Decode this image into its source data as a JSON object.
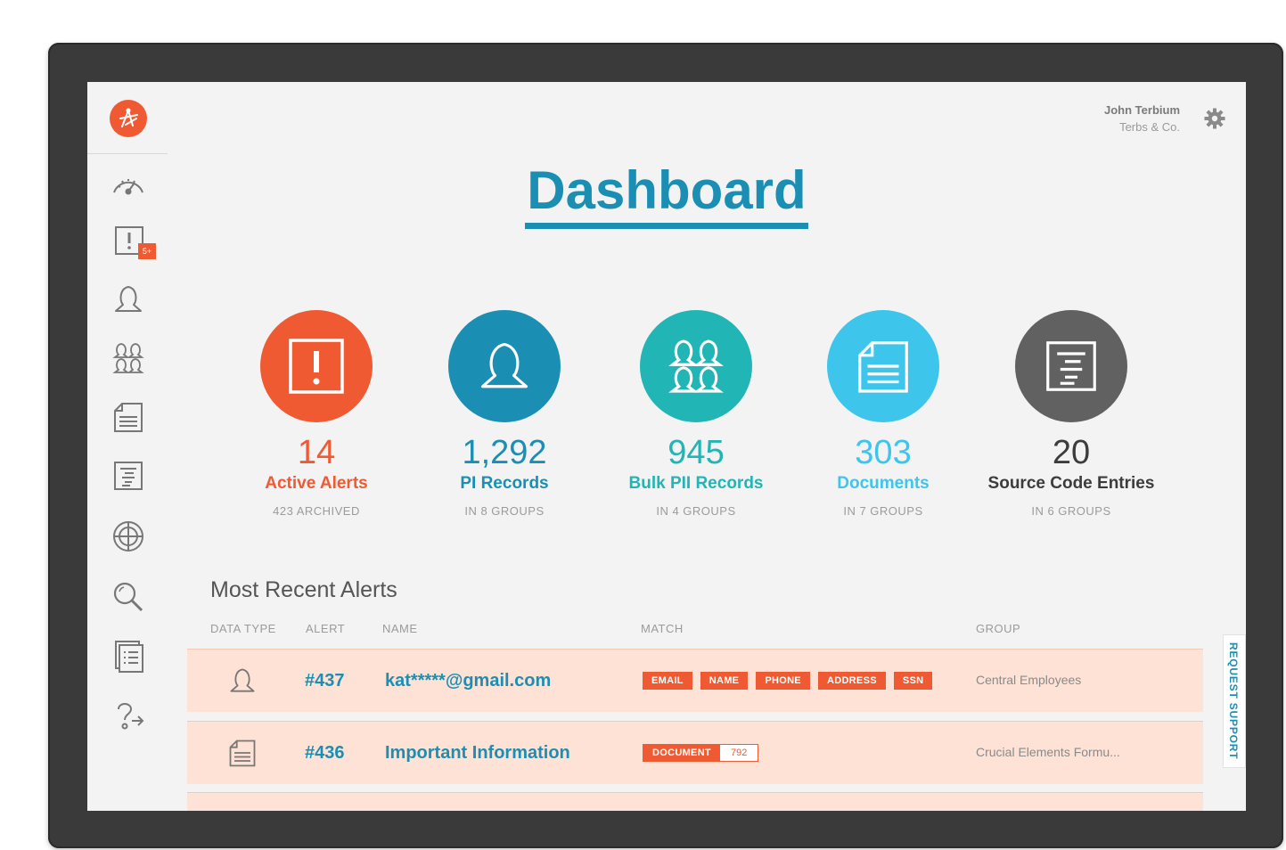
{
  "header": {
    "user_name": "John Terbium",
    "user_company": "Terbs & Co.",
    "title": "Dashboard"
  },
  "sidebar": {
    "alerts_badge": "5+",
    "items": [
      {
        "icon": "speedometer-icon"
      },
      {
        "icon": "alert-icon"
      },
      {
        "icon": "person-icon"
      },
      {
        "icon": "group-icon"
      },
      {
        "icon": "document-icon"
      },
      {
        "icon": "source-code-icon"
      },
      {
        "icon": "globe-icon"
      },
      {
        "icon": "search-icon"
      },
      {
        "icon": "list-icon"
      },
      {
        "icon": "help-icon"
      }
    ]
  },
  "stats": [
    {
      "value": "14",
      "label": "Active Alerts",
      "sub": "423 ARCHIVED",
      "color": "#f05a33",
      "icon": "alert-icon"
    },
    {
      "value": "1,292",
      "label": "PI Records",
      "sub": "IN 8 GROUPS",
      "color": "#1b8fb3",
      "icon": "person-icon"
    },
    {
      "value": "945",
      "label": "Bulk PII Records",
      "sub": "IN 4 GROUPS",
      "color": "#22b5b5",
      "icon": "group-icon"
    },
    {
      "value": "303",
      "label": "Documents",
      "sub": "IN 7 GROUPS",
      "color": "#3dc5ec",
      "icon": "document-icon"
    },
    {
      "value": "20",
      "label": "Source Code Entries",
      "sub": "IN 6 GROUPS",
      "color": "#616161",
      "icon": "source-code-icon"
    }
  ],
  "alerts": {
    "title": "Most Recent Alerts",
    "columns": {
      "data_type": "DATA TYPE",
      "alert": "ALERT",
      "name": "NAME",
      "match": "MATCH",
      "group": "GROUP"
    },
    "rows": [
      {
        "icon": "person-icon",
        "alert": "#437",
        "name": "kat*****@gmail.com",
        "tags": [
          "EMAIL",
          "NAME",
          "PHONE",
          "ADDRESS",
          "SSN"
        ],
        "group": "Central Employees"
      },
      {
        "icon": "document-icon",
        "alert": "#436",
        "name": "Important Information",
        "tag": "DOCUMENT",
        "count": "792",
        "group": "Crucial Elements Formu..."
      }
    ]
  },
  "support": "REQUEST SUPPORT"
}
